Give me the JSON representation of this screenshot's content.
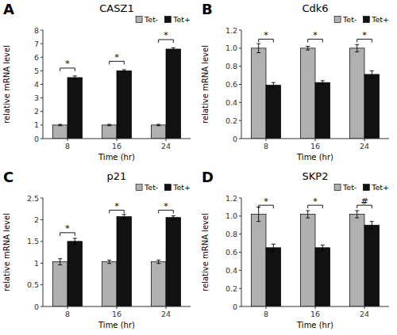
{
  "chart_data": [
    {
      "type": "bar",
      "panel_label": "A",
      "title": "CASZ1",
      "categories": [
        "8",
        "16",
        "24"
      ],
      "xlabel": "Time (hr)",
      "ylabel": "relative mRNA level",
      "series": [
        {
          "name": "Tet-",
          "color": "#b0b0b0",
          "values": [
            1.0,
            1.0,
            1.0
          ],
          "errors": [
            0.05,
            0.05,
            0.05
          ]
        },
        {
          "name": "Tet+",
          "color": "#111111",
          "values": [
            4.5,
            5.0,
            6.6
          ],
          "errors": [
            0.12,
            0.08,
            0.1
          ]
        }
      ],
      "annotations": [
        {
          "text": "*",
          "x": "8",
          "y": 5.2
        },
        {
          "text": "*",
          "x": "16",
          "y": 5.7
        },
        {
          "text": "*",
          "x": "24",
          "y": 7.3
        }
      ],
      "ylim": [
        0,
        8
      ],
      "yticks": [
        0,
        1,
        2,
        3,
        4,
        5,
        6,
        7,
        8
      ],
      "grid": false,
      "legend": "upper right"
    },
    {
      "type": "bar",
      "panel_label": "B",
      "title": "Cdk6",
      "categories": [
        "8",
        "16",
        "24"
      ],
      "xlabel": "Time (hr)",
      "ylabel": "relative mRNA level",
      "series": [
        {
          "name": "Tet-",
          "color": "#b0b0b0",
          "values": [
            1.0,
            1.0,
            1.0
          ],
          "errors": [
            0.05,
            0.02,
            0.04
          ]
        },
        {
          "name": "Tet+",
          "color": "#111111",
          "values": [
            0.59,
            0.62,
            0.71
          ],
          "errors": [
            0.03,
            0.02,
            0.04
          ]
        }
      ],
      "annotations": [
        {
          "text": "*",
          "x": "8",
          "y": 1.1
        },
        {
          "text": "*",
          "x": "16",
          "y": 1.1
        },
        {
          "text": "*",
          "x": "24",
          "y": 1.1
        }
      ],
      "ylim": [
        0,
        1.2
      ],
      "yticks": [
        0,
        0.2,
        0.4,
        0.6,
        0.8,
        {
          "value": 1.0,
          "label": "1.0"
        },
        1.2
      ],
      "grid": false,
      "legend": "upper right"
    },
    {
      "type": "bar",
      "panel_label": "C",
      "title": "p21",
      "categories": [
        "8",
        "16",
        "24"
      ],
      "xlabel": "Time (hr)",
      "ylabel": "relative mRNA level",
      "series": [
        {
          "name": "Tet-",
          "color": "#b0b0b0",
          "values": [
            1.03,
            1.03,
            1.03
          ],
          "errors": [
            0.07,
            0.04,
            0.04
          ]
        },
        {
          "name": "Tet+",
          "color": "#111111",
          "values": [
            1.5,
            2.07,
            2.05
          ],
          "errors": [
            0.07,
            0.05,
            0.04
          ]
        }
      ],
      "annotations": [
        {
          "text": "*",
          "x": "8",
          "y": 1.7
        },
        {
          "text": "*",
          "x": "16",
          "y": 2.22
        },
        {
          "text": "*",
          "x": "24",
          "y": 2.22
        }
      ],
      "ylim": [
        0,
        2.5
      ],
      "yticks": [
        0,
        0.5,
        1,
        1.5,
        2,
        2.5
      ],
      "grid": false,
      "legend": "upper right"
    },
    {
      "type": "bar",
      "panel_label": "D",
      "title": "SKP2",
      "categories": [
        "8",
        "16",
        "24"
      ],
      "xlabel": "Time (hr)",
      "ylabel": "relative mRNA level",
      "series": [
        {
          "name": "Tet-",
          "color": "#b0b0b0",
          "values": [
            1.02,
            1.02,
            1.02
          ],
          "errors": [
            0.08,
            0.04,
            0.04
          ]
        },
        {
          "name": "Tet+",
          "color": "#111111",
          "values": [
            0.65,
            0.65,
            0.9
          ],
          "errors": [
            0.04,
            0.03,
            0.04
          ]
        }
      ],
      "annotations": [
        {
          "text": "*",
          "x": "8",
          "y": 1.12
        },
        {
          "text": "*",
          "x": "16",
          "y": 1.12
        },
        {
          "text": "#",
          "x": "24",
          "y": 1.12
        }
      ],
      "ylim": [
        0,
        1.2
      ],
      "yticks": [
        0,
        0.2,
        0.4,
        0.6,
        0.8,
        {
          "value": 1.0,
          "label": "1.0"
        },
        1.2
      ],
      "grid": false,
      "legend": "upper right"
    }
  ]
}
